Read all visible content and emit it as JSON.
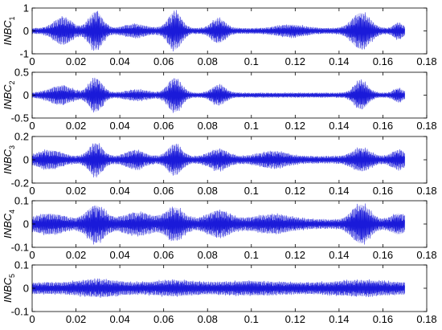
{
  "figure": {
    "line_color": "#1a1ad9",
    "fill_color": "#a8a8f0",
    "axis_color": "#000000"
  },
  "chart_data": [
    {
      "type": "line",
      "ylabel_main": "INBC",
      "ylabel_sub": "1",
      "xlim": [
        0,
        0.18
      ],
      "ylim": [
        -1,
        1
      ],
      "xticks": [
        0,
        0.02,
        0.04,
        0.06,
        0.08,
        0.1,
        0.12,
        0.14,
        0.16,
        0.18
      ],
      "xtick_labels": [
        "0",
        "0.02",
        "0.04",
        "0.06",
        "0.08",
        "0.1",
        "0.12",
        "0.14",
        "0.16",
        "0.18"
      ],
      "yticks": [
        -1,
        0,
        1
      ],
      "ytick_labels": [
        "-1",
        "0",
        "1"
      ],
      "data_end": 0.17,
      "base_amplitude": 0.14,
      "bursts": [
        {
          "t": 0.014,
          "amp": 0.55,
          "width": 0.004
        },
        {
          "t": 0.029,
          "amp": 0.85,
          "width": 0.003
        },
        {
          "t": 0.047,
          "amp": 0.2,
          "width": 0.005
        },
        {
          "t": 0.065,
          "amp": 0.82,
          "width": 0.003
        },
        {
          "t": 0.085,
          "amp": 0.48,
          "width": 0.003
        },
        {
          "t": 0.118,
          "amp": 0.18,
          "width": 0.006
        },
        {
          "t": 0.15,
          "amp": 0.78,
          "width": 0.004
        },
        {
          "t": 0.167,
          "amp": 0.28,
          "width": 0.002
        }
      ]
    },
    {
      "type": "line",
      "ylabel_main": "INBC",
      "ylabel_sub": "2",
      "xlim": [
        0,
        0.18
      ],
      "ylim": [
        -0.5,
        0.5
      ],
      "xticks": [
        0,
        0.02,
        0.04,
        0.06,
        0.08,
        0.1,
        0.12,
        0.14,
        0.16,
        0.18
      ],
      "xtick_labels": [
        "0",
        "0.02",
        "0.04",
        "0.06",
        "0.08",
        "0.1",
        "0.12",
        "0.14",
        "0.16",
        "0.18"
      ],
      "yticks": [
        -0.5,
        0,
        0.5
      ],
      "ytick_labels": [
        "-0.5",
        "0",
        "0.5"
      ],
      "data_end": 0.17,
      "base_amplitude": 0.06,
      "bursts": [
        {
          "t": 0.013,
          "amp": 0.18,
          "width": 0.005
        },
        {
          "t": 0.029,
          "amp": 0.36,
          "width": 0.003
        },
        {
          "t": 0.048,
          "amp": 0.08,
          "width": 0.005
        },
        {
          "t": 0.065,
          "amp": 0.37,
          "width": 0.003
        },
        {
          "t": 0.085,
          "amp": 0.2,
          "width": 0.003
        },
        {
          "t": 0.15,
          "amp": 0.3,
          "width": 0.003
        },
        {
          "t": 0.167,
          "amp": 0.12,
          "width": 0.002
        }
      ]
    },
    {
      "type": "line",
      "ylabel_main": "INBC",
      "ylabel_sub": "3",
      "xlim": [
        0,
        0.18
      ],
      "ylim": [
        -0.2,
        0.2
      ],
      "xticks": [
        0,
        0.02,
        0.04,
        0.06,
        0.08,
        0.1,
        0.12,
        0.14,
        0.16,
        0.18
      ],
      "xtick_labels": [
        "0",
        "0.02",
        "0.04",
        "0.06",
        "0.08",
        "0.1",
        "0.12",
        "0.14",
        "0.16",
        "0.18"
      ],
      "yticks": [
        -0.2,
        0,
        0.2
      ],
      "ytick_labels": [
        "-0.2",
        "0",
        "0.2"
      ],
      "data_end": 0.17,
      "base_amplitude": 0.035,
      "bursts": [
        {
          "t": 0.008,
          "amp": 0.06,
          "width": 0.005
        },
        {
          "t": 0.029,
          "amp": 0.13,
          "width": 0.003
        },
        {
          "t": 0.047,
          "amp": 0.06,
          "width": 0.004
        },
        {
          "t": 0.065,
          "amp": 0.12,
          "width": 0.003
        },
        {
          "t": 0.085,
          "amp": 0.07,
          "width": 0.004
        },
        {
          "t": 0.11,
          "amp": 0.05,
          "width": 0.006
        },
        {
          "t": 0.15,
          "amp": 0.08,
          "width": 0.004
        },
        {
          "t": 0.167,
          "amp": 0.06,
          "width": 0.003
        }
      ]
    },
    {
      "type": "line",
      "ylabel_main": "INBC",
      "ylabel_sub": "4",
      "xlim": [
        0,
        0.18
      ],
      "ylim": [
        -0.1,
        0.1
      ],
      "xticks": [
        0,
        0.02,
        0.04,
        0.06,
        0.08,
        0.1,
        0.12,
        0.14,
        0.16,
        0.18
      ],
      "xtick_labels": [
        "0",
        "0.02",
        "0.04",
        "0.06",
        "0.08",
        "0.1",
        "0.12",
        "0.14",
        "0.16",
        "0.18"
      ],
      "yticks": [
        -0.1,
        0,
        0.1
      ],
      "ytick_labels": [
        "-0.1",
        "0",
        "0.1"
      ],
      "data_end": 0.17,
      "base_amplitude": 0.022,
      "bursts": [
        {
          "t": 0.008,
          "amp": 0.03,
          "width": 0.006
        },
        {
          "t": 0.029,
          "amp": 0.07,
          "width": 0.004
        },
        {
          "t": 0.048,
          "amp": 0.035,
          "width": 0.006
        },
        {
          "t": 0.065,
          "amp": 0.06,
          "width": 0.004
        },
        {
          "t": 0.085,
          "amp": 0.045,
          "width": 0.005
        },
        {
          "t": 0.11,
          "amp": 0.025,
          "width": 0.008
        },
        {
          "t": 0.15,
          "amp": 0.075,
          "width": 0.004
        },
        {
          "t": 0.167,
          "amp": 0.03,
          "width": 0.003
        }
      ]
    },
    {
      "type": "line",
      "ylabel_main": "INBC",
      "ylabel_sub": "5",
      "xlim": [
        0,
        0.18
      ],
      "ylim": [
        -0.1,
        0.1
      ],
      "xticks": [
        0,
        0.02,
        0.04,
        0.06,
        0.08,
        0.1,
        0.12,
        0.14,
        0.16,
        0.18
      ],
      "xtick_labels": [
        "0",
        "0.02",
        "0.04",
        "0.06",
        "0.08",
        "0.1",
        "0.12",
        "0.14",
        "0.16",
        "0.18"
      ],
      "yticks": [
        -0.1,
        0,
        0.1
      ],
      "ytick_labels": [
        "-0.1",
        "0",
        "0.1"
      ],
      "data_end": 0.17,
      "base_amplitude": 0.028,
      "bursts": [
        {
          "t": 0.03,
          "amp": 0.016,
          "width": 0.008
        },
        {
          "t": 0.065,
          "amp": 0.012,
          "width": 0.008
        },
        {
          "t": 0.1,
          "amp": 0.008,
          "width": 0.01
        },
        {
          "t": 0.15,
          "amp": 0.012,
          "width": 0.01
        }
      ]
    }
  ]
}
